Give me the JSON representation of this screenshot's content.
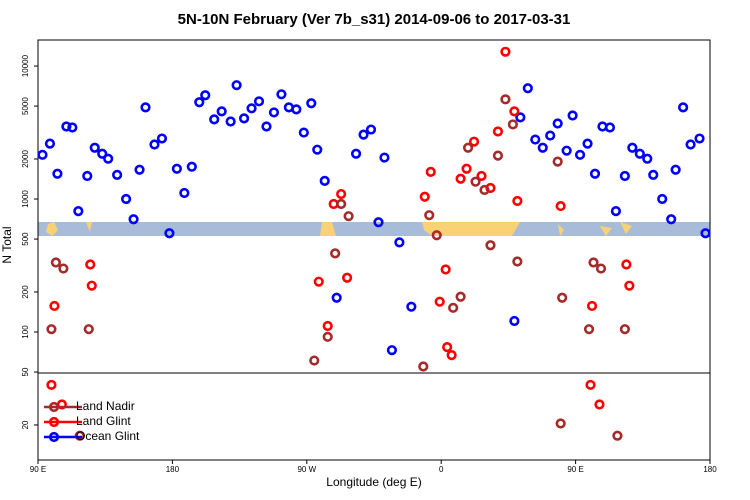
{
  "chart_data": {
    "type": "scatter",
    "title": "5N-10N February (Ver 7b_s31)   2014-09-06 to 2017-03-31",
    "x_label": "Longitude (deg E)",
    "y_label": "N Total",
    "y_scale": "log",
    "legend_position": "lower left",
    "xlim": [
      90,
      540
    ],
    "xticks": [
      {
        "value": 90,
        "label": "90 E"
      },
      180,
      {
        "value": 270,
        "label": "90 W"
      },
      {
        "value": 360,
        "label": "0"
      },
      {
        "value": 450,
        "label": "90 E"
      },
      {
        "value": 540,
        "label": "180"
      }
    ],
    "ylim": [
      10.9,
      15700
    ],
    "yticks": [
      20,
      50,
      100,
      200,
      500,
      1000,
      2000,
      5000,
      10000
    ],
    "series": [
      {
        "name": "Land Nadir",
        "color": "#a52a2a",
        "x": [
          99,
          102,
          107,
          118,
          124,
          275,
          284,
          289,
          293,
          298,
          348,
          352,
          357,
          368,
          373,
          378,
          383,
          389,
          393,
          398,
          403,
          408,
          411,
          438,
          441,
          440,
          459,
          462,
          467,
          478,
          483
        ],
        "values": [
          105,
          333,
          300,
          16.6,
          105,
          61,
          92,
          390,
          917,
          743,
          55,
          756,
          534,
          152,
          184,
          2430,
          1350,
          1170,
          449,
          2120,
          5620,
          3640,
          339,
          1910,
          181,
          20.5,
          105,
          333,
          300,
          16.6,
          105
        ]
      },
      {
        "name": "Land Glint",
        "color": "#ff0000",
        "x": [
          99,
          101,
          106,
          125,
          126,
          278,
          284,
          288,
          293,
          297,
          349,
          353,
          359,
          363,
          364,
          367,
          373,
          377,
          382,
          387,
          393,
          398,
          403,
          409,
          411,
          440,
          460,
          461,
          466,
          484,
          486
        ],
        "values": [
          40,
          157,
          28.5,
          322,
          223,
          239,
          111,
          917,
          1090,
          256,
          1040,
          1600,
          169,
          295,
          77,
          67,
          1420,
          1690,
          2700,
          1490,
          1210,
          3220,
          12800,
          4560,
          966,
          885,
          40,
          157,
          28.5,
          322,
          223
        ]
      },
      {
        "name": "Ocean Glint",
        "color": "#0000ff",
        "x": [
          93,
          98,
          103,
          109,
          113,
          117,
          123,
          128,
          133,
          137,
          143,
          149,
          154,
          158,
          162,
          168,
          173,
          178,
          183,
          188,
          193,
          198,
          202,
          208,
          213,
          219,
          223,
          228,
          233,
          238,
          243,
          248,
          253,
          258,
          263,
          268,
          273,
          277,
          282,
          290,
          303,
          308,
          313,
          318,
          322,
          327,
          332,
          340,
          409,
          413,
          418,
          423,
          428,
          433,
          438,
          444,
          448,
          453,
          458,
          463,
          468,
          473,
          477,
          483,
          488,
          493,
          498,
          502,
          508,
          514,
          517,
          522,
          527,
          533,
          537
        ],
        "values": [
          2150,
          2610,
          1550,
          3510,
          3450,
          811,
          1490,
          2430,
          2190,
          2010,
          1520,
          1000,
          705,
          1660,
          4890,
          2570,
          2850,
          553,
          1690,
          1110,
          1750,
          5340,
          6030,
          3970,
          4560,
          3830,
          7180,
          4040,
          4810,
          5430,
          3510,
          4480,
          6130,
          4890,
          4720,
          3160,
          5250,
          2350,
          1370,
          181,
          2190,
          3050,
          3330,
          669,
          2050,
          73,
          472,
          155,
          121,
          4110,
          6810,
          2800,
          2430,
          3000,
          3700,
          2310,
          4250,
          2150,
          2610,
          1550,
          3510,
          3450,
          811,
          1490,
          2430,
          2190,
          2010,
          1520,
          1000,
          705,
          1660,
          4890,
          2570,
          2850,
          553
        ]
      }
    ]
  }
}
